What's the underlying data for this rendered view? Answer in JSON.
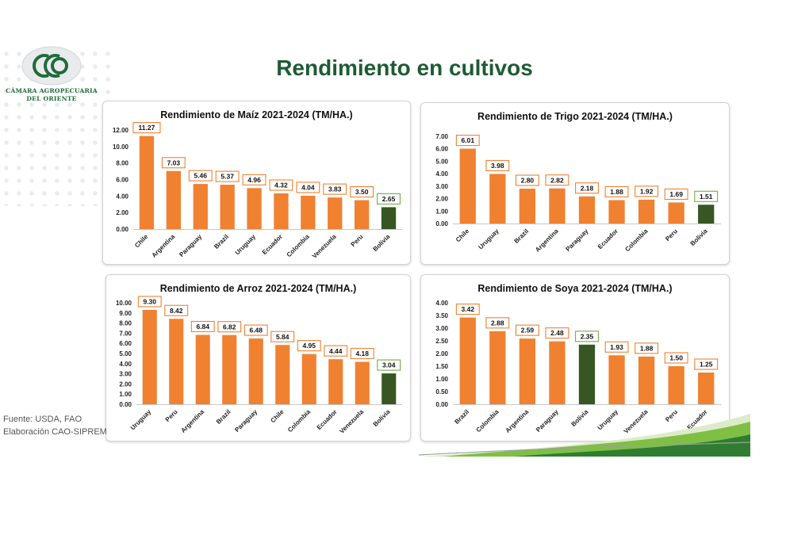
{
  "header": {
    "title": "Rendimiento en cultivos",
    "org_line1": "CÁMARA AGROPECUARIA",
    "org_line2": "DEL ORIENTE"
  },
  "footer": {
    "source": "Fuente: USDA, FAO",
    "credit": "Elaboración CAO-SIPREM"
  },
  "colors": {
    "bar": "#f08131",
    "highlight": "#375623",
    "title": "#1e5b34"
  },
  "chart_data": [
    {
      "type": "bar",
      "title": "Rendimiento de Maíz 2021-2024 (TM/HA.)",
      "categories": [
        "Chile",
        "Argentina",
        "Paraguay",
        "Brazil",
        "Uruguay",
        "Ecuador",
        "Colombia",
        "Venezuela",
        "Peru",
        "Bolivia"
      ],
      "values": [
        11.27,
        7.03,
        5.46,
        5.37,
        4.96,
        4.32,
        4.04,
        3.83,
        3.5,
        2.65
      ],
      "labels": [
        "11.27",
        "7.03",
        "5.46",
        "5.37",
        "4.96",
        "4.32",
        "4.04",
        "3.83",
        "3.50",
        "2.65"
      ],
      "highlight": "Bolivia",
      "ylim": [
        0,
        12
      ],
      "yticks": [
        "0.00",
        "2.00",
        "4.00",
        "6.00",
        "8.00",
        "10.00",
        "12.00"
      ],
      "grid": false
    },
    {
      "type": "bar",
      "title": "Rendimiento de Trigo 2021-2024 (TM/HA.)",
      "categories": [
        "Chile",
        "Uruguay",
        "Brazil",
        "Argentina",
        "Paraguay",
        "Ecuador",
        "Colombia",
        "Peru",
        "Bolivia"
      ],
      "values": [
        6.01,
        3.98,
        2.8,
        2.82,
        2.18,
        1.88,
        1.92,
        1.69,
        1.51
      ],
      "labels": [
        "6.01",
        "3.98",
        "2.80",
        "2.82",
        "2.18",
        "1.88",
        "1.92",
        "1.69",
        "1.51"
      ],
      "highlight": "Bolivia",
      "ylim": [
        0,
        7
      ],
      "yticks": [
        "0.00",
        "1.00",
        "2.00",
        "3.00",
        "4.00",
        "5.00",
        "6.00",
        "7.00"
      ],
      "grid": false
    },
    {
      "type": "bar",
      "title": "Rendimiento de Arroz 2021-2024 (TM/HA.)",
      "categories": [
        "Uruguay",
        "Peru",
        "Argentina",
        "Brazil",
        "Paraguay",
        "Chile",
        "Colombia",
        "Ecuador",
        "Venezuela",
        "Bolivia"
      ],
      "values": [
        9.3,
        8.42,
        6.84,
        6.82,
        6.48,
        5.84,
        4.95,
        4.44,
        4.18,
        3.04
      ],
      "labels": [
        "9.30",
        "8.42",
        "6.84",
        "6.82",
        "6.48",
        "5.84",
        "4.95",
        "4.44",
        "4.18",
        "3.04"
      ],
      "highlight": "Bolivia",
      "ylim": [
        0,
        10
      ],
      "yticks": [
        "0.00",
        "1.00",
        "2.00",
        "3.00",
        "4.00",
        "5.00",
        "6.00",
        "7.00",
        "8.00",
        "9.00",
        "10.00"
      ],
      "grid": false
    },
    {
      "type": "bar",
      "title": "Rendimiento de Soya 2021-2024 (TM/HA.)",
      "categories": [
        "Brazil",
        "Colombia",
        "Argentina",
        "Paraguay",
        "Bolivia",
        "Uruguay",
        "Venezuela",
        "Peru",
        "Ecuador"
      ],
      "values": [
        3.42,
        2.88,
        2.59,
        2.48,
        2.35,
        1.93,
        1.88,
        1.5,
        1.25
      ],
      "labels": [
        "3.42",
        "2.88",
        "2.59",
        "2.48",
        "2.35",
        "1.93",
        "1.88",
        "1.50",
        "1.25"
      ],
      "highlight": "Bolivia",
      "ylim": [
        0,
        4
      ],
      "yticks": [
        "0.00",
        "0.50",
        "1.00",
        "1.50",
        "2.00",
        "2.50",
        "3.00",
        "3.50",
        "4.00"
      ],
      "grid": false
    }
  ]
}
